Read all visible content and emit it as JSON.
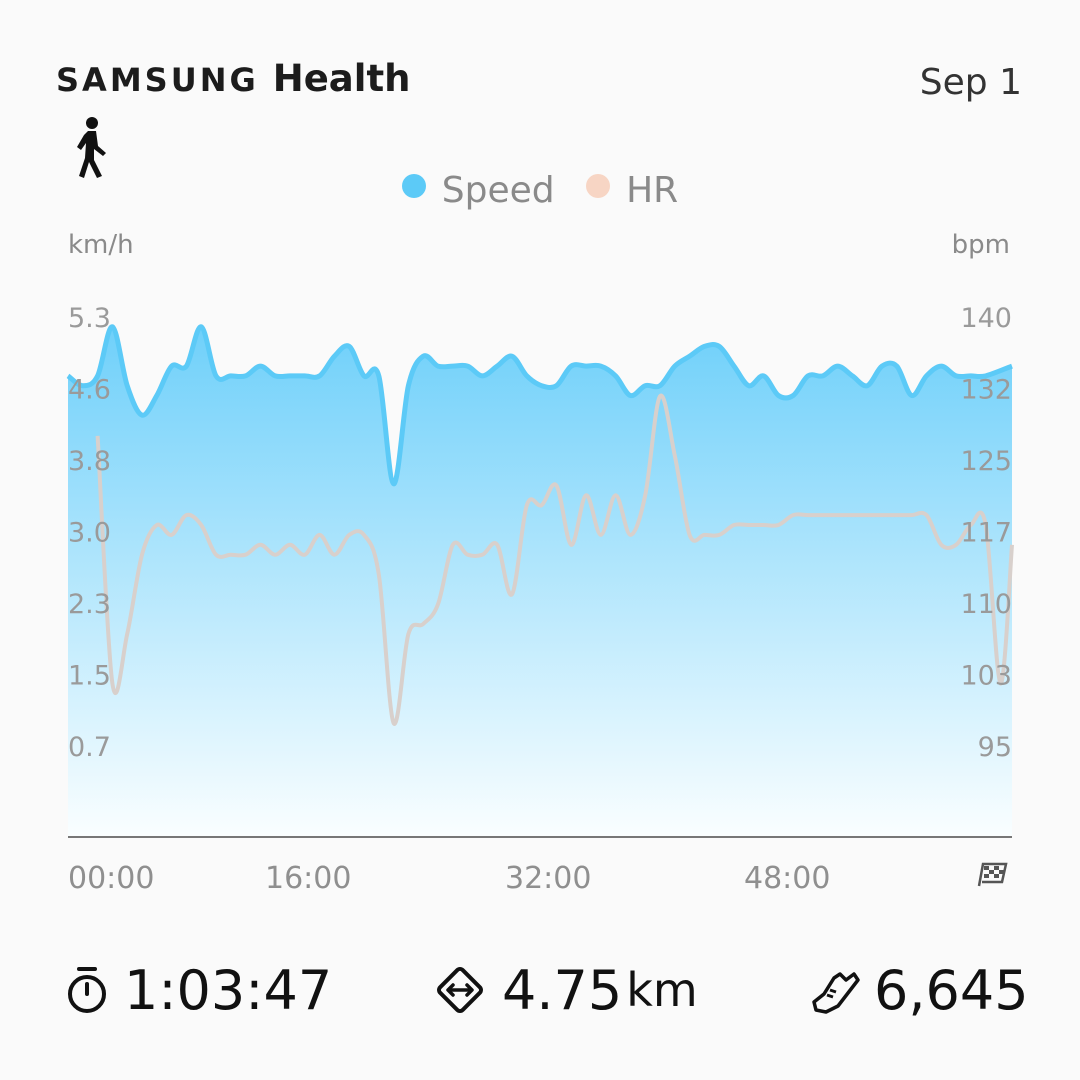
{
  "header": {
    "brand_samsung": "SAMSUNG",
    "brand_health": "Health",
    "date": "Sep 1",
    "activity_icon": "walking-person-icon"
  },
  "legend": [
    {
      "label": "Speed",
      "color": "#5ccaf7"
    },
    {
      "label": "HR",
      "color": "#f7d5c4"
    }
  ],
  "units": {
    "left": "km/h",
    "right": "bpm"
  },
  "chart_data": {
    "type": "area",
    "title": "",
    "x_ticks": [
      "00:00",
      "16:00",
      "32:00",
      "48:00"
    ],
    "x_end_icon": "checkered-flag-icon",
    "x_range_minutes": [
      0,
      63.78
    ],
    "y_left_label": "km/h",
    "y_left_ticks": [
      "5.3",
      "4.6",
      "3.8",
      "3.0",
      "2.3",
      "1.5",
      "0.7"
    ],
    "y_left_range": [
      0,
      5.3
    ],
    "y_right_label": "bpm",
    "y_right_ticks": [
      "140",
      "132",
      "125",
      "117",
      "110",
      "103",
      "95"
    ],
    "y_right_range": [
      87.5,
      140
    ],
    "series": [
      {
        "name": "Speed",
        "unit": "km/h",
        "color": "#5ccaf7",
        "style": "area",
        "x": [
          0,
          1,
          2,
          3,
          4,
          5,
          6,
          7,
          8,
          9,
          10,
          11,
          12,
          13,
          14,
          15,
          16,
          17,
          18,
          19,
          20,
          21,
          22,
          23,
          24,
          25,
          26,
          27,
          28,
          29,
          30,
          31,
          32,
          33,
          34,
          35,
          36,
          37,
          38,
          39,
          40,
          41,
          42,
          43,
          44,
          45,
          46,
          47,
          48,
          49,
          50,
          51,
          52,
          53,
          54,
          55,
          56,
          57,
          58,
          59,
          60,
          61,
          62,
          63.78
        ],
        "values": [
          4.7,
          4.6,
          4.7,
          5.2,
          4.6,
          4.3,
          4.5,
          4.8,
          4.8,
          5.2,
          4.7,
          4.7,
          4.7,
          4.8,
          4.7,
          4.7,
          4.7,
          4.7,
          4.9,
          5.0,
          4.7,
          4.7,
          3.6,
          4.6,
          4.9,
          4.8,
          4.8,
          4.8,
          4.7,
          4.8,
          4.9,
          4.7,
          4.6,
          4.6,
          4.8,
          4.8,
          4.8,
          4.7,
          4.5,
          4.6,
          4.6,
          4.8,
          4.9,
          5.0,
          5.0,
          4.8,
          4.6,
          4.7,
          4.5,
          4.5,
          4.7,
          4.7,
          4.8,
          4.7,
          4.6,
          4.8,
          4.8,
          4.5,
          4.7,
          4.8,
          4.7,
          4.7,
          4.7,
          4.8
        ]
      },
      {
        "name": "HR",
        "unit": "bpm",
        "color": "#d8d0cc",
        "style": "line",
        "x": [
          2,
          3,
          4,
          5,
          6,
          7,
          8,
          9,
          10,
          11,
          12,
          13,
          14,
          15,
          16,
          17,
          18,
          19,
          20,
          21,
          22,
          23,
          24,
          25,
          26,
          27,
          28,
          29,
          30,
          31,
          32,
          33,
          34,
          35,
          36,
          37,
          38,
          39,
          40,
          41,
          42,
          43,
          44,
          45,
          46,
          47,
          48,
          49,
          50,
          51,
          52,
          53,
          54,
          55,
          56,
          57,
          58,
          59,
          60,
          61,
          62,
          63,
          63.78
        ],
        "values": [
          128,
          103,
          108,
          116,
          119,
          118,
          120,
          119,
          116,
          116,
          116,
          117,
          116,
          117,
          116,
          118,
          116,
          118,
          118,
          114,
          99,
          108,
          109,
          111,
          117,
          116,
          116,
          117,
          112,
          121,
          121,
          123,
          117,
          122,
          118,
          122,
          118,
          122,
          132,
          126,
          118,
          118,
          118,
          119,
          119,
          119,
          119,
          120,
          120,
          120,
          120,
          120,
          120,
          120,
          120,
          120,
          120,
          117,
          117,
          119,
          119,
          103,
          117
        ]
      }
    ],
    "area_gradient": [
      "#5ccaf7",
      "#ffffff"
    ]
  },
  "stats": {
    "duration": {
      "icon": "stopwatch-icon",
      "value": "1:03:47"
    },
    "distance": {
      "icon": "distance-diamond-icon",
      "value": "4.75",
      "unit": "km"
    },
    "steps": {
      "icon": "shoe-icon",
      "value": "6,645"
    }
  }
}
